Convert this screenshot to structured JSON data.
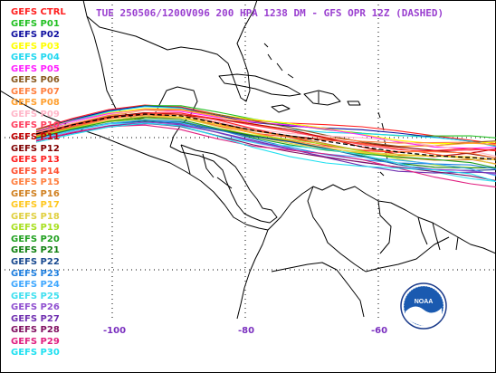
{
  "title": "TUE 250506/1200V096  200 HPA 1238 DM - GFS OPR 12Z (DASHED)",
  "legend": [
    {
      "label": "GEFS CTRL",
      "color": "#ff2020"
    },
    {
      "label": "GEFS P01",
      "color": "#22c022"
    },
    {
      "label": "GEFS P02",
      "color": "#1010a0"
    },
    {
      "label": "GEFS P03",
      "color": "#ffff00"
    },
    {
      "label": "GEFS P04",
      "color": "#20d8f0"
    },
    {
      "label": "GEFS P05",
      "color": "#ff20ff"
    },
    {
      "label": "GEFS P06",
      "color": "#8a5a20"
    },
    {
      "label": "GEFS P07",
      "color": "#ff8040"
    },
    {
      "label": "GEFS P08",
      "color": "#ffa030"
    },
    {
      "label": "GEFS P09",
      "color": "#ffb6c8"
    },
    {
      "label": "GEFS P10",
      "color": "#ff4060"
    },
    {
      "label": "GEFS P11",
      "color": "#c00000"
    },
    {
      "label": "GEFS P12",
      "color": "#800000"
    },
    {
      "label": "GEFS P13",
      "color": "#ff2020"
    },
    {
      "label": "GEFS P14",
      "color": "#ff5030"
    },
    {
      "label": "GEFS P15",
      "color": "#ff8040"
    },
    {
      "label": "GEFS P16",
      "color": "#d08020"
    },
    {
      "label": "GEFS P17",
      "color": "#ffc820"
    },
    {
      "label": "GEFS P18",
      "color": "#e0d040"
    },
    {
      "label": "GEFS P19",
      "color": "#a8e020"
    },
    {
      "label": "GEFS P20",
      "color": "#20a020"
    },
    {
      "label": "GEFS P21",
      "color": "#108010"
    },
    {
      "label": "GEFS P22",
      "color": "#1a4a90"
    },
    {
      "label": "GEFS P23",
      "color": "#2080e0"
    },
    {
      "label": "GEFS P24",
      "color": "#40a8ff"
    },
    {
      "label": "GEFS P25",
      "color": "#40e0f0"
    },
    {
      "label": "GEFS P26",
      "color": "#9050d0"
    },
    {
      "label": "GEFS P27",
      "color": "#7030b0"
    },
    {
      "label": "GEFS P28",
      "color": "#801060"
    },
    {
      "label": "GEFS P29",
      "color": "#e02080"
    },
    {
      "label": "GEFS P30",
      "color": "#20e0f0"
    }
  ],
  "axis_labels": [
    "-100",
    "-80",
    "-60"
  ],
  "logo_text": "NOAA"
}
